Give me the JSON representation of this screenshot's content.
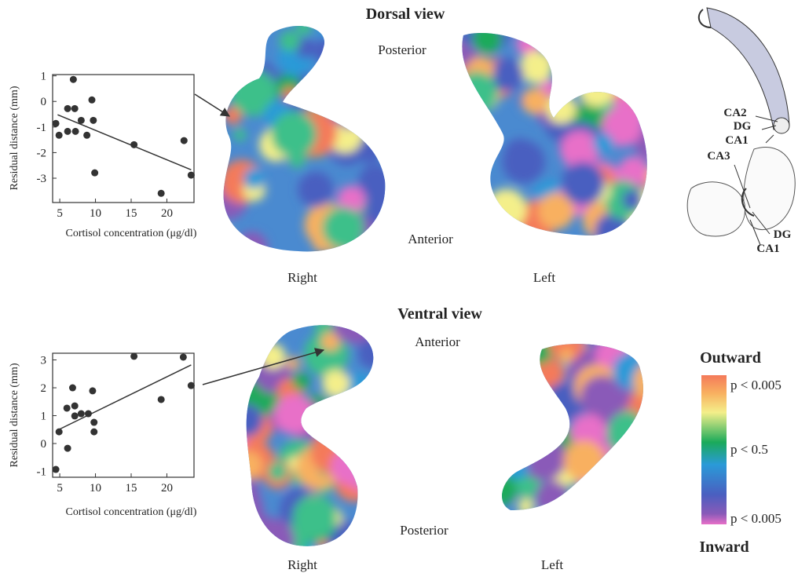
{
  "chart_data": [
    {
      "type": "scatter",
      "x_label": "Cortisol concentration (μg/dl)",
      "y_label": "Residual distance (mm)",
      "x": [
        4.45,
        4.9,
        6.1,
        6.9,
        6.1,
        7.1,
        7.2,
        8.0,
        8.8,
        9.5,
        9.7,
        9.9,
        15.4,
        19.2,
        22.4,
        23.4
      ],
      "values": [
        -0.86,
        -1.32,
        -1.17,
        0.86,
        -0.28,
        -0.28,
        -1.17,
        -0.74,
        -1.32,
        0.06,
        -0.74,
        -2.79,
        -1.69,
        -3.59,
        -1.53,
        -2.88
      ],
      "trendline": {
        "x": [
          4.7,
          23.4
        ],
        "values": [
          -0.52,
          -2.67
        ]
      },
      "color": "#333333",
      "xlim": [
        4.0,
        23.8
      ],
      "ylim": [
        -3.95,
        1.05
      ],
      "xticks": [
        5,
        10,
        15,
        20
      ],
      "yticks": [
        -3,
        -2,
        -1,
        0,
        1
      ]
    },
    {
      "type": "scatter",
      "x_label": "Cortisol concentration (μg/dl)",
      "y_label": "Residual distance (mm)",
      "x": [
        4.45,
        4.9,
        6.1,
        6.0,
        6.8,
        7.1,
        7.1,
        8.0,
        9.0,
        9.6,
        9.8,
        9.8,
        15.4,
        19.2,
        22.3,
        23.4
      ],
      "values": [
        -0.93,
        0.42,
        -0.17,
        1.27,
        2.0,
        1.35,
        0.99,
        1.07,
        1.07,
        1.89,
        0.42,
        0.76,
        3.13,
        1.58,
        3.1,
        2.08
      ],
      "trendline": {
        "x": [
          4.7,
          23.4
        ],
        "values": [
          0.48,
          2.82
        ]
      },
      "color": "#333333",
      "xlim": [
        4.0,
        23.8
      ],
      "ylim": [
        -1.21,
        3.24
      ],
      "xticks": [
        5,
        10,
        15,
        20
      ],
      "yticks": [
        -1,
        0,
        1,
        2,
        3
      ]
    }
  ],
  "dorsal": {
    "title": "Dorsal view",
    "top": "Posterior",
    "bottom": "Anterior",
    "right": "Right",
    "left": "Left"
  },
  "ventral": {
    "title": "Ventral view",
    "top": "Anterior",
    "bottom": "Posterior",
    "right": "Right",
    "left": "Left"
  },
  "diagram": {
    "labels": [
      "CA2",
      "DG",
      "CA1",
      "CA3",
      "DG",
      "CA1"
    ]
  },
  "legend": {
    "top": "Outward",
    "bottom": "Inward",
    "levels": [
      "p < 0.005",
      "p < 0.5",
      "p < 0.005"
    ]
  }
}
